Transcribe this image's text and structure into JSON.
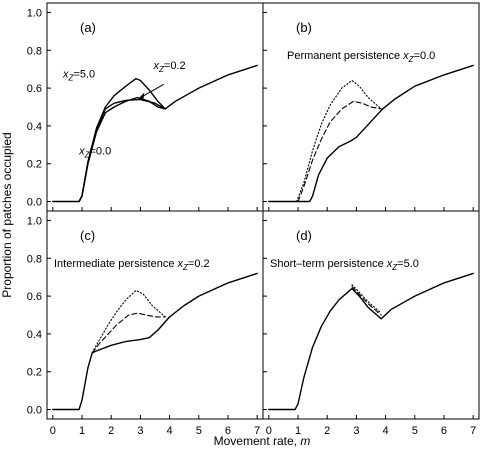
{
  "figure": {
    "ylabel": "Proportion of patches occupied",
    "xlabel_text": "Movement rate, ",
    "xlabel_var": "m"
  },
  "chart_data": [
    {
      "type": "line",
      "panel": "(a)",
      "subtitle_text": "",
      "subtitle_var": "",
      "subtitle_eq": "",
      "xlim": [
        -0.2,
        7.2
      ],
      "ylim": [
        -0.05,
        1.05
      ],
      "xticks": [
        0,
        1,
        2,
        3,
        4,
        5,
        6,
        7
      ],
      "yticks": [
        0.0,
        0.2,
        0.4,
        0.6,
        0.8,
        1.0
      ],
      "show_xticklabels": false,
      "show_yticklabels": true,
      "annotations": [
        {
          "var": "x",
          "sub": "Z",
          "eq": "=5.0",
          "x": 0.35,
          "y": 0.655
        },
        {
          "var": "x",
          "sub": "Z",
          "eq": "=0.2",
          "x": 3.45,
          "y": 0.7
        },
        {
          "var": "x",
          "sub": "Z",
          "eq": "=0.0",
          "x": 0.9,
          "y": 0.25
        }
      ],
      "series": [
        {
          "style": "solid",
          "x": [
            0,
            0.9,
            1.0,
            1.2,
            1.5,
            1.8,
            2.1,
            2.5,
            3.0,
            3.5,
            3.85,
            4.2,
            5.0,
            6.0,
            7.0
          ],
          "y": [
            0,
            0,
            0.03,
            0.2,
            0.38,
            0.49,
            0.52,
            0.535,
            0.54,
            0.52,
            0.49,
            0.53,
            0.6,
            0.67,
            0.72
          ]
        },
        {
          "style": "solid",
          "x": [
            0.9,
            1.0,
            1.2,
            1.5,
            1.8,
            2.1,
            2.5,
            2.9,
            3.3,
            3.6,
            3.85
          ],
          "y": [
            0,
            0.03,
            0.2,
            0.37,
            0.47,
            0.5,
            0.53,
            0.55,
            0.53,
            0.5,
            0.49
          ]
        },
        {
          "style": "solid",
          "x": [
            0.9,
            1.0,
            1.2,
            1.5,
            1.8,
            2.1,
            2.5,
            2.85,
            3.0,
            3.3,
            3.6,
            3.85
          ],
          "y": [
            0,
            0.03,
            0.21,
            0.39,
            0.5,
            0.56,
            0.61,
            0.65,
            0.64,
            0.59,
            0.53,
            0.49
          ]
        }
      ]
    },
    {
      "type": "line",
      "panel": "(b)",
      "subtitle_text": "Permanent persistence ",
      "subtitle_var": "x",
      "subtitle_sub": "Z",
      "subtitle_eq": "=0.0",
      "xlim": [
        -0.2,
        7.2
      ],
      "ylim": [
        -0.05,
        1.05
      ],
      "xticks": [
        0,
        1,
        2,
        3,
        4,
        5,
        6,
        7
      ],
      "yticks": [
        0.0,
        0.2,
        0.4,
        0.6,
        0.8,
        1.0
      ],
      "show_xticklabels": false,
      "show_yticklabels": false,
      "annotations": [],
      "series": [
        {
          "style": "solid",
          "x": [
            0,
            1.4,
            1.5,
            1.7,
            2.0,
            2.4,
            2.8,
            3.0,
            3.3,
            3.6,
            3.9,
            4.3,
            5.0,
            6.0,
            7.0
          ],
          "y": [
            0,
            0,
            0.03,
            0.14,
            0.23,
            0.29,
            0.32,
            0.34,
            0.39,
            0.44,
            0.49,
            0.54,
            0.61,
            0.67,
            0.72
          ]
        },
        {
          "style": "dashed",
          "x": [
            1.0,
            1.2,
            1.5,
            1.8,
            2.1,
            2.5,
            2.9,
            3.2,
            3.5,
            3.85
          ],
          "y": [
            0,
            0.08,
            0.22,
            0.33,
            0.42,
            0.49,
            0.53,
            0.52,
            0.5,
            0.49
          ]
        },
        {
          "style": "dotted",
          "x": [
            0.95,
            1.2,
            1.5,
            1.8,
            2.1,
            2.5,
            2.85,
            3.1,
            3.4,
            3.85
          ],
          "y": [
            0,
            0.1,
            0.27,
            0.41,
            0.51,
            0.6,
            0.64,
            0.61,
            0.55,
            0.49
          ]
        }
      ]
    },
    {
      "type": "line",
      "panel": "(c)",
      "subtitle_text": "Intermediate persistence ",
      "subtitle_var": "x",
      "subtitle_sub": "Z",
      "subtitle_eq": "=0.2",
      "xlim": [
        -0.2,
        7.2
      ],
      "ylim": [
        -0.05,
        1.05
      ],
      "xticks": [
        0,
        1,
        2,
        3,
        4,
        5,
        6,
        7
      ],
      "yticks": [
        0.0,
        0.2,
        0.4,
        0.6,
        0.8,
        1.0
      ],
      "show_xticklabels": true,
      "show_yticklabels": true,
      "annotations": [],
      "series": [
        {
          "style": "solid",
          "x": [
            0,
            0.9,
            1.0,
            1.2,
            1.35,
            1.5,
            2.0,
            2.5,
            3.0,
            3.3,
            3.6,
            4.0,
            4.5,
            5.0,
            6.0,
            7.0
          ],
          "y": [
            0,
            0,
            0.05,
            0.22,
            0.3,
            0.31,
            0.34,
            0.36,
            0.37,
            0.38,
            0.42,
            0.49,
            0.55,
            0.6,
            0.67,
            0.72
          ]
        },
        {
          "style": "dashed",
          "x": [
            1.35,
            1.6,
            1.9,
            2.2,
            2.6,
            2.9,
            3.2,
            3.5,
            3.85
          ],
          "y": [
            0.3,
            0.35,
            0.4,
            0.45,
            0.5,
            0.51,
            0.5,
            0.49,
            0.49
          ]
        },
        {
          "style": "dotted",
          "x": [
            1.35,
            1.6,
            1.9,
            2.2,
            2.5,
            2.85,
            3.1,
            3.4,
            3.85
          ],
          "y": [
            0.3,
            0.37,
            0.45,
            0.52,
            0.58,
            0.63,
            0.61,
            0.55,
            0.49
          ]
        }
      ]
    },
    {
      "type": "line",
      "panel": "(d)",
      "subtitle_text": "Short–term persistence ",
      "subtitle_var": "x",
      "subtitle_sub": "Z",
      "subtitle_eq": "=5.0",
      "xlim": [
        -0.2,
        7.2
      ],
      "ylim": [
        -0.05,
        1.05
      ],
      "xticks": [
        0,
        1,
        2,
        3,
        4,
        5,
        6,
        7
      ],
      "yticks": [
        0.0,
        0.2,
        0.4,
        0.6,
        0.8,
        1.0
      ],
      "show_xticklabels": true,
      "show_yticklabels": false,
      "annotations": [],
      "series": [
        {
          "style": "solid",
          "x": [
            0,
            0.9,
            1.0,
            1.2,
            1.5,
            1.8,
            2.1,
            2.4,
            2.7,
            2.85,
            3.1,
            3.4,
            3.85,
            4.2,
            5.0,
            6.0,
            7.0
          ],
          "y": [
            0,
            0,
            0.03,
            0.17,
            0.33,
            0.44,
            0.52,
            0.58,
            0.62,
            0.64,
            0.6,
            0.54,
            0.48,
            0.53,
            0.6,
            0.67,
            0.72
          ]
        },
        {
          "style": "dashed",
          "x": [
            2.85,
            3.1,
            3.4,
            3.85
          ],
          "y": [
            0.65,
            0.61,
            0.56,
            0.5
          ]
        },
        {
          "style": "dotted",
          "x": [
            2.85,
            3.1,
            3.4,
            3.85
          ],
          "y": [
            0.66,
            0.62,
            0.57,
            0.51
          ]
        }
      ]
    }
  ]
}
